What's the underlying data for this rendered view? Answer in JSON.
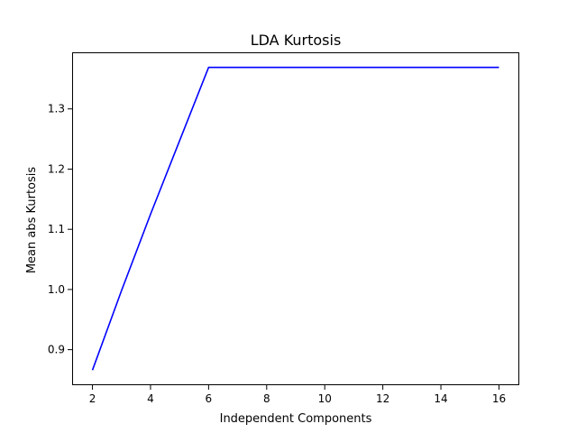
{
  "chart_data": {
    "type": "line",
    "title": "LDA Kurtosis",
    "xlabel": "Independent Components",
    "ylabel": "Mean abs Kurtosis",
    "x": [
      2,
      3,
      4,
      5,
      6,
      7,
      8,
      9,
      10,
      11,
      12,
      13,
      14,
      15,
      16
    ],
    "series": [
      {
        "values": [
          0.866,
          0.998,
          1.125,
          1.247,
          1.369,
          1.369,
          1.369,
          1.369,
          1.369,
          1.369,
          1.369,
          1.369,
          1.369,
          1.369,
          1.369
        ],
        "color": "#0000ff"
      }
    ],
    "xlim": [
      1.3,
      16.7
    ],
    "ylim": [
      0.841,
      1.394
    ],
    "xticks": [
      2,
      4,
      6,
      8,
      10,
      12,
      14,
      16
    ],
    "xtick_labels": [
      "2",
      "4",
      "6",
      "8",
      "10",
      "12",
      "14",
      "16"
    ],
    "yticks": [
      0.9,
      1.0,
      1.1,
      1.2,
      1.3
    ],
    "ytick_labels": [
      "0.9",
      "1.0",
      "1.1",
      "1.2",
      "1.3"
    ],
    "grid": false,
    "legend": "none"
  }
}
